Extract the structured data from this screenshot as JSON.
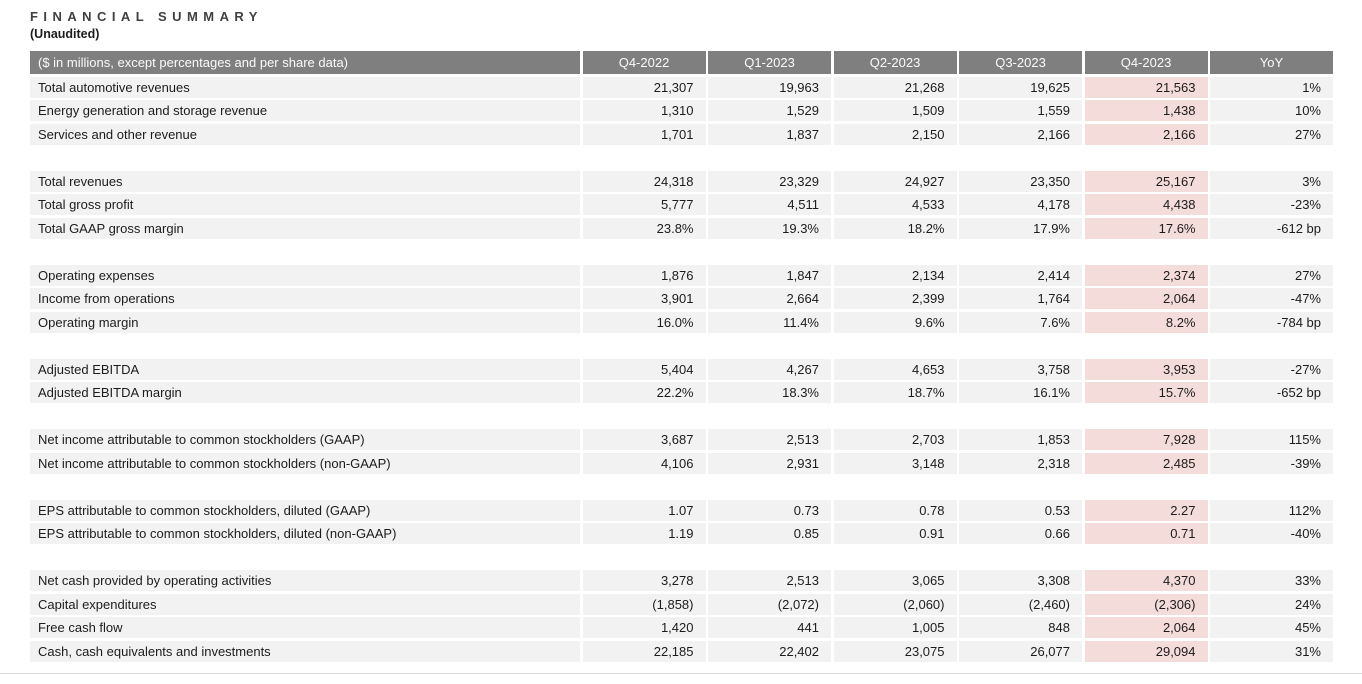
{
  "page": {
    "title": "FINANCIAL SUMMARY",
    "subtitle": "(Unaudited)"
  },
  "colors": {
    "header_bg": "#7f7f7f",
    "header_text": "#fbfbfb",
    "row_bg": "#f2f2f2",
    "highlight_bg": "#f4dcda",
    "body_text": "#1c1c1c",
    "title_text": "#404040"
  },
  "table": {
    "header": {
      "label": "($ in millions, except percentages and per share data)",
      "columns": [
        "Q4-2022",
        "Q1-2023",
        "Q2-2023",
        "Q3-2023",
        "Q4-2023",
        "YoY"
      ]
    },
    "highlight_column": "Q4-2023",
    "highlight_column_index": 4,
    "groups": [
      {
        "rows": [
          {
            "label": "Total automotive revenues",
            "values": [
              "21,307",
              "19,963",
              "21,268",
              "19,625",
              "21,563",
              "1%"
            ]
          },
          {
            "label": "Energy generation and storage revenue",
            "values": [
              "1,310",
              "1,529",
              "1,509",
              "1,559",
              "1,438",
              "10%"
            ]
          },
          {
            "label": "Services and other revenue",
            "values": [
              "1,701",
              "1,837",
              "2,150",
              "2,166",
              "2,166",
              "27%"
            ]
          }
        ]
      },
      {
        "rows": [
          {
            "label": "Total revenues",
            "values": [
              "24,318",
              "23,329",
              "24,927",
              "23,350",
              "25,167",
              "3%"
            ]
          },
          {
            "label": "Total gross profit",
            "values": [
              "5,777",
              "4,511",
              "4,533",
              "4,178",
              "4,438",
              "-23%"
            ]
          },
          {
            "label": "Total GAAP gross margin",
            "values": [
              "23.8%",
              "19.3%",
              "18.2%",
              "17.9%",
              "17.6%",
              "-612 bp"
            ]
          }
        ]
      },
      {
        "rows": [
          {
            "label": "Operating expenses",
            "values": [
              "1,876",
              "1,847",
              "2,134",
              "2,414",
              "2,374",
              "27%"
            ]
          },
          {
            "label": "Income from operations",
            "values": [
              "3,901",
              "2,664",
              "2,399",
              "1,764",
              "2,064",
              "-47%"
            ]
          },
          {
            "label": "Operating margin",
            "values": [
              "16.0%",
              "11.4%",
              "9.6%",
              "7.6%",
              "8.2%",
              "-784 bp"
            ]
          }
        ]
      },
      {
        "rows": [
          {
            "label": "Adjusted EBITDA",
            "values": [
              "5,404",
              "4,267",
              "4,653",
              "3,758",
              "3,953",
              "-27%"
            ]
          },
          {
            "label": "Adjusted EBITDA margin",
            "values": [
              "22.2%",
              "18.3%",
              "18.7%",
              "16.1%",
              "15.7%",
              "-652 bp"
            ]
          }
        ]
      },
      {
        "rows": [
          {
            "label": "Net income attributable to common stockholders (GAAP)",
            "values": [
              "3,687",
              "2,513",
              "2,703",
              "1,853",
              "7,928",
              "115%"
            ]
          },
          {
            "label": "Net income attributable to common stockholders (non-GAAP)",
            "values": [
              "4,106",
              "2,931",
              "3,148",
              "2,318",
              "2,485",
              "-39%"
            ]
          }
        ]
      },
      {
        "rows": [
          {
            "label": "EPS attributable to common stockholders, diluted (GAAP)",
            "values": [
              "1.07",
              "0.73",
              "0.78",
              "0.53",
              "2.27",
              "112%"
            ]
          },
          {
            "label": "EPS attributable to common stockholders, diluted (non-GAAP)",
            "values": [
              "1.19",
              "0.85",
              "0.91",
              "0.66",
              "0.71",
              "-40%"
            ]
          }
        ]
      },
      {
        "rows": [
          {
            "label": "Net cash provided by operating activities",
            "values": [
              "3,278",
              "2,513",
              "3,065",
              "3,308",
              "4,370",
              "33%"
            ]
          },
          {
            "label": "Capital expenditures",
            "values": [
              "(1,858)",
              "(2,072)",
              "(2,060)",
              "(2,460)",
              "(2,306)",
              "24%"
            ]
          },
          {
            "label": "Free cash flow",
            "values": [
              "1,420",
              "441",
              "1,005",
              "848",
              "2,064",
              "45%"
            ]
          },
          {
            "label": "Cash, cash equivalents and investments",
            "values": [
              "22,185",
              "22,402",
              "23,075",
              "26,077",
              "29,094",
              "31%"
            ]
          }
        ]
      }
    ]
  }
}
